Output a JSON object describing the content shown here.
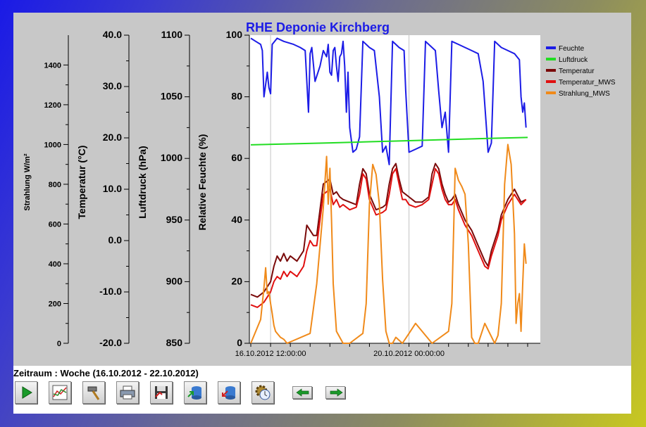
{
  "chart_data": {
    "type": "line",
    "title": "RHE Deponie Kirchberg",
    "axes": [
      {
        "id": "strahlung",
        "label": "Strahlung W/m²",
        "min": 0,
        "max": 1550,
        "ticks": [
          "0",
          "200",
          "400",
          "600",
          "800",
          "1000",
          "1200",
          "1400"
        ],
        "tick_values": [
          0,
          200,
          400,
          600,
          800,
          1000,
          1200,
          1400
        ]
      },
      {
        "id": "temperatur",
        "label": "Temperatur (°C)",
        "min": -20,
        "max": 40,
        "ticks": [
          "-20.0",
          "-10.0",
          "0.0",
          "10.0",
          "20.0",
          "30.0",
          "40.0"
        ],
        "tick_values": [
          -20,
          -10,
          0,
          10,
          20,
          30,
          40
        ]
      },
      {
        "id": "luftdruck",
        "label": "Luftdruck (hPa)",
        "min": 850,
        "max": 1100,
        "ticks": [
          "850",
          "900",
          "950",
          "1000",
          "1050",
          "1100"
        ],
        "tick_values": [
          850,
          900,
          950,
          1000,
          1050,
          1100
        ]
      },
      {
        "id": "feuchte",
        "label": "Relative Feuchte (%)",
        "min": 0,
        "max": 100,
        "ticks": [
          "0",
          "20",
          "40",
          "60",
          "80",
          "100"
        ],
        "tick_values": [
          0,
          20,
          40,
          60,
          80,
          100
        ]
      }
    ],
    "x_ticks": [
      "16.10.2012 12:00:00",
      "20.10.2012 00:00:00"
    ],
    "x_range_hours": [
      0,
      168
    ],
    "x_tick_hours": [
      12,
      96
    ],
    "grid": "vertical",
    "legend_position": "top-right",
    "series": [
      {
        "name": "Feuchte",
        "color": "#1c1ce6",
        "axis": "feuchte",
        "x": [
          0,
          3,
          6,
          7,
          8,
          9,
          10,
          11,
          12,
          13,
          16,
          20,
          26,
          30,
          33,
          35,
          36,
          37,
          39,
          42,
          44,
          46,
          47,
          48,
          49,
          50,
          51,
          52,
          53,
          54,
          55,
          56,
          57,
          58,
          59,
          60,
          62,
          64,
          66,
          68,
          70,
          72,
          75,
          78,
          80,
          82,
          84,
          86,
          88,
          90,
          93,
          94,
          96,
          100,
          104,
          106,
          108,
          110,
          112,
          114,
          116,
          118,
          120,
          122,
          126,
          130,
          134,
          138,
          141,
          143,
          144,
          146,
          148,
          150,
          152,
          156,
          160,
          163,
          164,
          165,
          166,
          167
        ],
        "y": [
          99,
          98,
          97,
          95,
          80,
          84,
          88,
          83,
          81,
          97,
          99,
          98,
          97,
          96,
          95,
          75,
          94,
          96,
          85,
          90,
          95,
          93,
          97,
          88,
          87,
          95,
          96,
          90,
          85,
          93,
          94,
          98,
          90,
          75,
          88,
          70,
          62,
          63,
          67,
          98,
          97,
          96,
          95,
          80,
          62,
          64,
          58,
          98,
          97,
          96,
          95,
          82,
          62,
          63,
          64,
          98,
          97,
          96,
          95,
          82,
          70,
          75,
          62,
          98,
          97,
          96,
          95,
          94,
          85,
          70,
          62,
          65,
          98,
          97,
          96,
          95,
          94,
          92,
          80,
          75,
          78,
          70
        ]
      },
      {
        "name": "Luftdruck",
        "color": "#22dd22",
        "axis": "luftdruck",
        "x": [
          0,
          24,
          48,
          72,
          96,
          120,
          144,
          168
        ],
        "y": [
          1011,
          1011.8,
          1012.6,
          1013.5,
          1014.4,
          1015.3,
          1016.2,
          1017
        ]
      },
      {
        "name": "Temperatur",
        "color": "#7a0a0a",
        "axis": "temperatur",
        "x": [
          0,
          4,
          8,
          12,
          14,
          16,
          18,
          20,
          22,
          24,
          28,
          32,
          34,
          36,
          38,
          40,
          44,
          48,
          50,
          52,
          54,
          56,
          60,
          64,
          66,
          68,
          70,
          72,
          76,
          80,
          82,
          84,
          86,
          88,
          90,
          92,
          94,
          96,
          100,
          104,
          108,
          110,
          112,
          114,
          116,
          118,
          120,
          122,
          124,
          126,
          130,
          134,
          138,
          142,
          144,
          146,
          148,
          150,
          152,
          156,
          160,
          164,
          167
        ],
        "y": [
          -10.5,
          -11,
          -10,
          -8,
          -5,
          -3,
          -4,
          -2.5,
          -4,
          -3,
          -4,
          -2,
          3,
          2,
          1,
          1,
          11,
          12,
          9,
          9.5,
          8.5,
          8,
          7.5,
          7,
          11,
          14,
          13,
          9,
          6,
          6.5,
          7,
          11,
          14,
          15,
          12,
          9.5,
          9,
          8.5,
          7.5,
          7.5,
          8.5,
          13,
          15,
          14,
          11,
          9,
          7.5,
          8,
          9,
          7,
          4,
          2,
          -1,
          -4,
          -5,
          -2,
          0,
          2,
          5,
          8,
          10,
          7.5,
          8
        ]
      },
      {
        "name": "Temperatur_MWS",
        "color": "#e01010",
        "axis": "temperatur",
        "x": [
          0,
          4,
          8,
          12,
          14,
          16,
          18,
          20,
          22,
          24,
          28,
          32,
          34,
          36,
          38,
          40,
          44,
          48,
          50,
          52,
          54,
          56,
          60,
          64,
          66,
          68,
          70,
          72,
          76,
          80,
          82,
          84,
          86,
          88,
          90,
          92,
          94,
          96,
          100,
          104,
          108,
          110,
          112,
          114,
          116,
          118,
          120,
          122,
          124,
          126,
          130,
          134,
          138,
          142,
          144,
          146,
          148,
          150,
          152,
          156,
          160,
          164,
          167
        ],
        "y": [
          -12.5,
          -13,
          -12,
          -10,
          -8,
          -7,
          -7.5,
          -6,
          -7,
          -6,
          -7,
          -5,
          -2,
          0,
          -1,
          -1,
          9,
          10,
          7,
          8,
          6.5,
          7,
          6,
          6.5,
          9,
          13,
          12,
          8,
          5,
          5.5,
          6,
          9,
          13,
          14,
          11,
          8,
          8,
          7,
          6.5,
          7,
          8,
          11,
          14,
          13,
          10,
          8,
          7,
          7,
          8,
          6,
          3,
          1,
          -2,
          -5,
          -5.5,
          -3,
          -1,
          1,
          4,
          7,
          9,
          7,
          8
        ]
      },
      {
        "name": "Strahlung_MWS",
        "color": "#f08a1a",
        "axis": "strahlung",
        "x": [
          0,
          6,
          8,
          9,
          10,
          11,
          12,
          13,
          14,
          15,
          16,
          18,
          20,
          22,
          36,
          40,
          44,
          46,
          47,
          48,
          49,
          50,
          52,
          56,
          60,
          68,
          70,
          72,
          74,
          76,
          78,
          80,
          82,
          84,
          86,
          88,
          92,
          96,
          100,
          110,
          120,
          122,
          124,
          126,
          128,
          130,
          132,
          134,
          136,
          138,
          142,
          148,
          150,
          152,
          154,
          156,
          158,
          160,
          161,
          162,
          163,
          164,
          165,
          166,
          167
        ],
        "y": [
          0,
          120,
          280,
          380,
          250,
          260,
          200,
          150,
          90,
          60,
          50,
          30,
          20,
          0,
          50,
          300,
          680,
          940,
          700,
          880,
          620,
          300,
          60,
          0,
          0,
          50,
          200,
          700,
          900,
          850,
          700,
          320,
          60,
          0,
          0,
          30,
          0,
          50,
          100,
          0,
          60,
          200,
          880,
          820,
          790,
          750,
          500,
          30,
          0,
          0,
          100,
          0,
          40,
          200,
          800,
          1000,
          900,
          550,
          100,
          200,
          250,
          60,
          300,
          500,
          400
        ]
      }
    ]
  },
  "legend": [
    {
      "label": "Feuchte",
      "color": "#1c1ce6"
    },
    {
      "label": "Luftdruck",
      "color": "#22dd22"
    },
    {
      "label": "Temperatur",
      "color": "#7a0a0a"
    },
    {
      "label": "Temperatur_MWS",
      "color": "#e01010"
    },
    {
      "label": "Strahlung_MWS",
      "color": "#f08a1a"
    }
  ],
  "footer": {
    "period_label": "Zeitraum : Woche (16.10.2012 - 22.10.2012)"
  },
  "toolbar": [
    {
      "name": "play-button",
      "icon": "play-icon"
    },
    {
      "name": "chart-button",
      "icon": "chart-icon"
    },
    {
      "name": "settings-tool-button",
      "icon": "hammer-icon"
    },
    {
      "name": "print-button",
      "icon": "printer-icon"
    },
    {
      "name": "save-button",
      "icon": "floppy-icon"
    },
    {
      "name": "import-button",
      "icon": "database-import-icon"
    },
    {
      "name": "export-button",
      "icon": "database-export-icon"
    },
    {
      "name": "config-button",
      "icon": "gear-clock-icon"
    },
    {
      "name": "prev-button",
      "icon": "arrow-left-icon"
    },
    {
      "name": "next-button",
      "icon": "arrow-right-icon"
    }
  ]
}
